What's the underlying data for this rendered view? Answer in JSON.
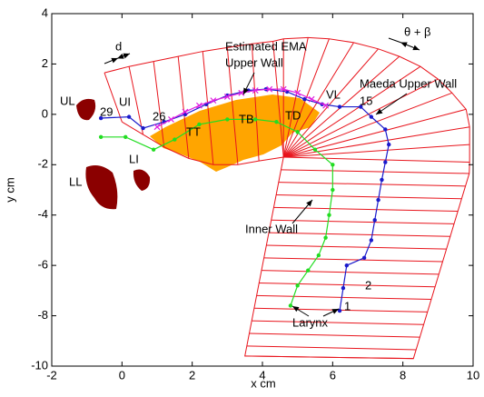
{
  "chart_data": {
    "type": "line",
    "xlabel": "x cm",
    "ylabel": "y cm",
    "xlim": [
      -2,
      10
    ],
    "ylim": [
      -10,
      4
    ],
    "xticks": [
      -2,
      0,
      2,
      4,
      6,
      8,
      10
    ],
    "yticks": [
      -10,
      -8,
      -6,
      -4,
      -2,
      0,
      2,
      4
    ],
    "grid_color": "#e8141c",
    "grid_segments": [
      [
        -0.5,
        1.65,
        0.0,
        -0.3
      ],
      [
        0.2,
        1.9,
        0.6,
        -0.8
      ],
      [
        0.9,
        2.1,
        1.2,
        -1.3
      ],
      [
        1.6,
        2.3,
        1.9,
        -1.75
      ],
      [
        2.3,
        2.5,
        2.6,
        -2.0
      ],
      [
        3.0,
        2.65,
        3.3,
        -2.0
      ],
      [
        3.7,
        2.8,
        3.9,
        -1.85
      ],
      [
        4.3,
        2.9,
        4.6,
        -1.7
      ],
      [
        4.6,
        -1.7,
        4.6,
        3.0
      ],
      [
        4.6,
        -1.7,
        5.3,
        3.05
      ],
      [
        4.6,
        -1.7,
        5.9,
        3.0
      ],
      [
        4.6,
        -1.7,
        6.6,
        2.85
      ],
      [
        4.6,
        -1.7,
        7.3,
        2.6
      ],
      [
        4.6,
        -1.7,
        7.9,
        2.3
      ],
      [
        4.6,
        -1.7,
        8.5,
        1.9
      ],
      [
        4.6,
        -1.7,
        9.0,
        1.4
      ],
      [
        4.6,
        -1.7,
        9.4,
        0.85
      ],
      [
        4.6,
        -1.7,
        9.8,
        0.2
      ],
      [
        4.6,
        -1.7,
        9.9,
        -0.5
      ],
      [
        4.6,
        -1.7,
        9.9,
        -1.2
      ],
      [
        4.6,
        -1.7,
        9.9,
        -1.9
      ],
      [
        4.53,
        -2.2,
        9.89,
        -2.35
      ],
      [
        4.46,
        -2.7,
        9.78,
        -2.85
      ],
      [
        4.39,
        -3.2,
        9.67,
        -3.35
      ],
      [
        4.32,
        -3.7,
        9.56,
        -3.85
      ],
      [
        4.25,
        -4.2,
        9.46,
        -4.35
      ],
      [
        4.18,
        -4.7,
        9.35,
        -4.85
      ],
      [
        4.11,
        -5.2,
        9.24,
        -5.35
      ],
      [
        4.04,
        -5.7,
        9.13,
        -5.85
      ],
      [
        3.97,
        -6.2,
        9.02,
        -6.35
      ],
      [
        3.9,
        -6.7,
        8.92,
        -6.85
      ],
      [
        3.83,
        -7.2,
        8.81,
        -7.35
      ],
      [
        3.76,
        -7.7,
        8.7,
        -7.85
      ],
      [
        3.69,
        -8.2,
        8.59,
        -8.35
      ],
      [
        3.62,
        -8.7,
        8.48,
        -8.85
      ],
      [
        3.55,
        -9.2,
        8.38,
        -9.35
      ],
      [
        3.5,
        -9.6,
        8.3,
        -9.7
      ]
    ],
    "grid_outline": {
      "x": [
        -0.5,
        0.2,
        0.9,
        1.6,
        2.3,
        3.0,
        3.7,
        4.3,
        4.6,
        5.3,
        5.9,
        6.6,
        7.3,
        7.9,
        8.5,
        9.0,
        9.4,
        9.8,
        9.9,
        9.9,
        9.9,
        9.89,
        8.3,
        3.5,
        4.6
      ],
      "y": [
        1.65,
        1.9,
        2.1,
        2.3,
        2.5,
        2.65,
        2.8,
        2.9,
        3.0,
        3.05,
        3.0,
        2.85,
        2.6,
        2.3,
        1.9,
        1.4,
        0.85,
        0.2,
        -0.5,
        -1.2,
        -1.9,
        -2.35,
        -9.7,
        -9.6,
        -1.7
      ]
    },
    "grid_inner": {
      "x": [
        0.0,
        0.6,
        1.2,
        1.9,
        2.6,
        3.3,
        3.9,
        4.6
      ],
      "y": [
        -0.3,
        -0.8,
        -1.3,
        -1.75,
        -2.0,
        -2.0,
        -1.85,
        -1.7
      ]
    },
    "series": [
      {
        "color": "#1a1acc",
        "marker": "dot",
        "x": [
          -0.6,
          0.2,
          0.6,
          1.2,
          1.8,
          2.4,
          3.0,
          3.6,
          4.1,
          4.7,
          5.2,
          5.7,
          6.2,
          6.8,
          7.1,
          7.5,
          7.6,
          7.5,
          7.4,
          7.3,
          7.2,
          7.1,
          6.9,
          6.4,
          6.3,
          6.2
        ],
        "values": [
          -0.15,
          -0.1,
          -0.55,
          -0.3,
          0.0,
          0.4,
          0.75,
          0.95,
          1.0,
          0.9,
          0.6,
          0.4,
          0.3,
          0.3,
          -0.1,
          -0.6,
          -1.2,
          -1.9,
          -2.6,
          -3.4,
          -4.2,
          -5.0,
          -5.7,
          -6.0,
          -6.9,
          -7.8
        ]
      },
      {
        "color": "#22dd22",
        "marker": "dot",
        "x": [
          -0.6,
          0.1,
          0.9,
          1.5,
          2.2,
          3.0,
          3.8,
          4.4,
          5.0,
          5.5,
          6.0,
          6.0,
          5.9,
          5.8,
          5.6,
          5.3,
          5.0,
          4.8
        ],
        "values": [
          -0.9,
          -0.9,
          -1.4,
          -1.0,
          -0.4,
          -0.2,
          -0.2,
          -0.3,
          -0.7,
          -1.4,
          -2.0,
          -3.0,
          -4.0,
          -4.9,
          -5.6,
          -6.2,
          -6.8,
          -7.6
        ]
      },
      {
        "color": "#e020e0",
        "marker": "cross",
        "x": [
          1.0,
          1.4,
          1.8,
          2.2,
          2.6,
          3.0,
          3.4,
          3.8,
          4.2,
          4.6,
          5.0,
          5.4,
          5.8
        ],
        "values": [
          -0.5,
          -0.2,
          0.1,
          0.35,
          0.55,
          0.7,
          0.85,
          0.95,
          1.0,
          1.0,
          0.85,
          0.6,
          0.35
        ]
      }
    ],
    "annotations": [
      "d",
      "θ + β",
      "Estimated EMA",
      "Upper Wall",
      "Maeda Upper Wall",
      "UL",
      "UI",
      "29",
      "26",
      "LI",
      "LL",
      "TT",
      "TB",
      "TD",
      "VL",
      "15",
      "Inner Wall",
      "2",
      "1",
      "Larynx"
    ]
  }
}
